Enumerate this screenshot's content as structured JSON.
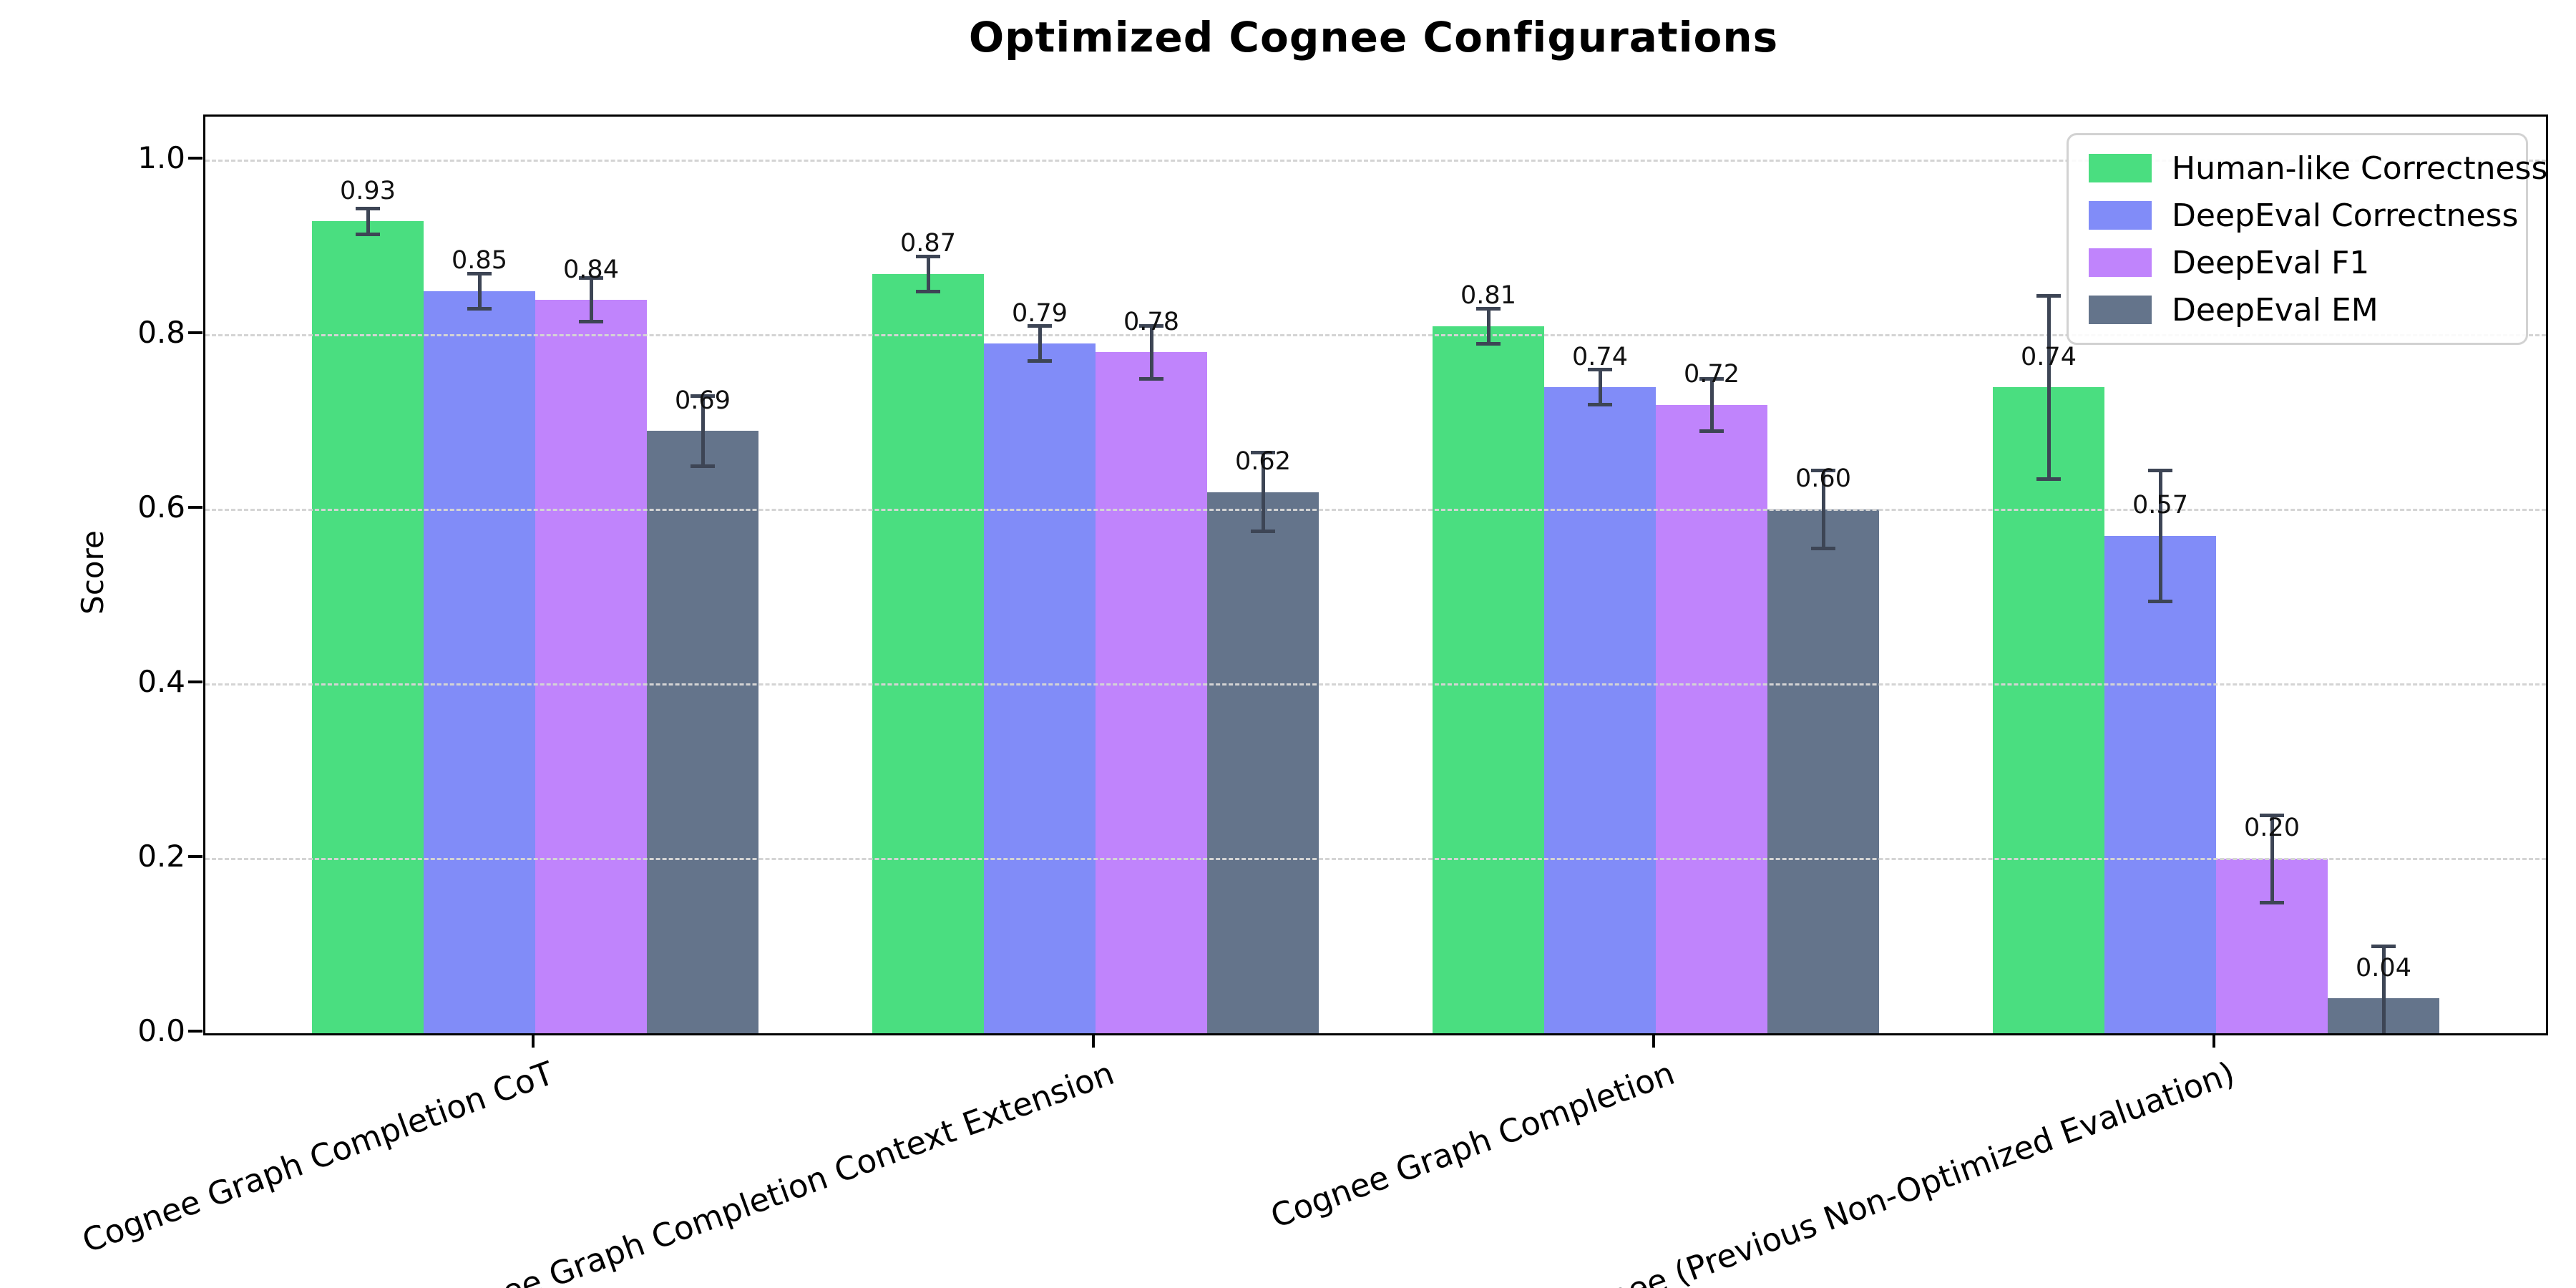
{
  "figure": {
    "background": "#ffffff",
    "grid_color": "#d4d4d4",
    "errorbar_color": "#3d4555",
    "spine_color": "#000000"
  },
  "chart_data": {
    "type": "bar",
    "title": "Optimized Cognee Configurations",
    "xlabel": "",
    "ylabel": "Score",
    "ylim": [
      0,
      1.05
    ],
    "yticks": [
      "0.0",
      "0.2",
      "0.4",
      "0.6",
      "0.8",
      "1.0"
    ],
    "grid": "horizontal-dashed",
    "grid_above_bars": true,
    "legend_position": "upper right",
    "categories": [
      "Cognee Graph Completion CoT",
      "Cognee Graph Completion Context Extension",
      "Cognee Graph Completion",
      "Cognee (Previous Non-Optimized Evaluation)"
    ],
    "series": [
      {
        "name": "Human-like Correctness",
        "color": "#4ade80",
        "values": [
          0.93,
          0.87,
          0.81,
          0.74
        ],
        "errors": [
          0.015,
          0.02,
          0.02,
          0.105
        ],
        "value_labels": [
          "0.93",
          "0.87",
          "0.81",
          "0.74"
        ]
      },
      {
        "name": "DeepEval Correctness",
        "color": "#818cf8",
        "values": [
          0.85,
          0.79,
          0.74,
          0.57
        ],
        "errors": [
          0.02,
          0.02,
          0.02,
          0.075
        ],
        "value_labels": [
          "0.85",
          "0.79",
          "0.74",
          "0.57"
        ]
      },
      {
        "name": "DeepEval F1",
        "color": "#c084fc",
        "values": [
          0.84,
          0.78,
          0.72,
          0.2
        ],
        "errors": [
          0.025,
          0.03,
          0.03,
          0.05
        ],
        "value_labels": [
          "0.84",
          "0.78",
          "0.72",
          "0.20"
        ]
      },
      {
        "name": "DeepEval EM",
        "color": "#64748b",
        "values": [
          0.69,
          0.62,
          0.6,
          0.04
        ],
        "errors": [
          0.04,
          0.045,
          0.045,
          0.06
        ],
        "value_labels": [
          "0.69",
          "0.62",
          "0.60",
          "0.04"
        ]
      }
    ]
  }
}
